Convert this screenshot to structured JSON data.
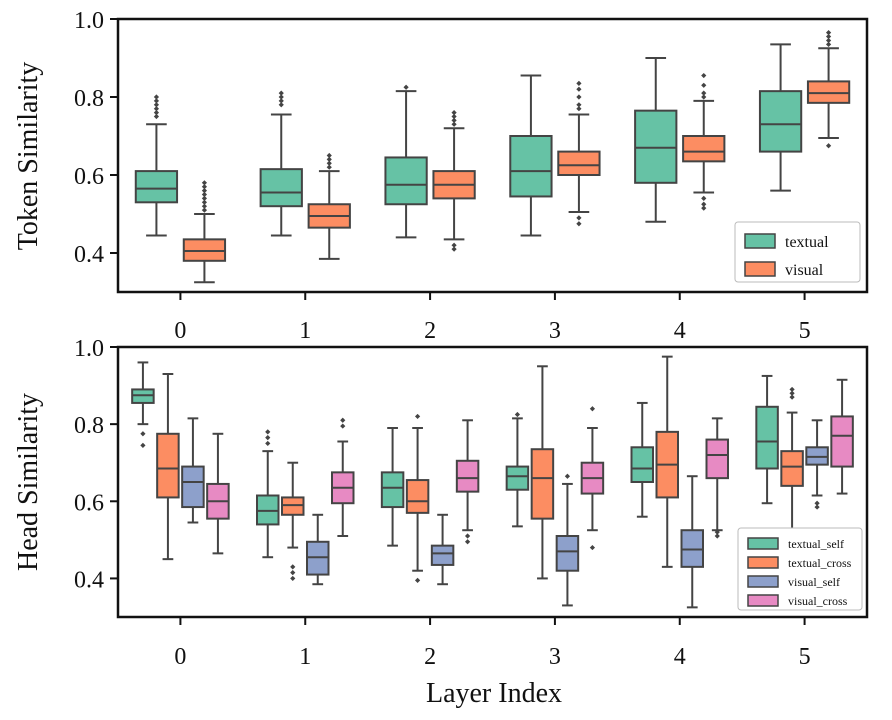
{
  "chart_data": [
    {
      "type": "box",
      "name": "token-similarity",
      "ylabel": "Token Similarity",
      "xlabel": "",
      "ylim": [
        0.3,
        1.0
      ],
      "yticks": [
        0.4,
        0.6,
        0.8,
        1.0
      ],
      "ytick_labels": [
        "0.4",
        "0.6",
        "0.8",
        "1.0"
      ],
      "categories": [
        "0",
        "1",
        "2",
        "3",
        "4",
        "5"
      ],
      "legend_position": "bottom-right",
      "series": [
        {
          "name": "textual",
          "color": "#66c2a5",
          "boxes": [
            {
              "whislo": 0.445,
              "q1": 0.53,
              "med": 0.565,
              "q3": 0.61,
              "whishi": 0.73,
              "fliers": [
                0.75,
                0.76,
                0.77,
                0.78,
                0.79,
                0.8
              ]
            },
            {
              "whislo": 0.445,
              "q1": 0.52,
              "med": 0.555,
              "q3": 0.615,
              "whishi": 0.755,
              "fliers": [
                0.78,
                0.79,
                0.8,
                0.81
              ]
            },
            {
              "whislo": 0.44,
              "q1": 0.525,
              "med": 0.575,
              "q3": 0.645,
              "whishi": 0.815,
              "fliers": [
                0.825
              ]
            },
            {
              "whislo": 0.445,
              "q1": 0.545,
              "med": 0.61,
              "q3": 0.7,
              "whishi": 0.855,
              "fliers": []
            },
            {
              "whislo": 0.48,
              "q1": 0.58,
              "med": 0.67,
              "q3": 0.765,
              "whishi": 0.9,
              "fliers": []
            },
            {
              "whislo": 0.56,
              "q1": 0.66,
              "med": 0.73,
              "q3": 0.815,
              "whishi": 0.935,
              "fliers": []
            }
          ]
        },
        {
          "name": "visual",
          "color": "#fc8d62",
          "boxes": [
            {
              "whislo": 0.325,
              "q1": 0.38,
              "med": 0.405,
              "q3": 0.435,
              "whishi": 0.5,
              "fliers": [
                0.51,
                0.52,
                0.53,
                0.54,
                0.55,
                0.56,
                0.57,
                0.58
              ]
            },
            {
              "whislo": 0.385,
              "q1": 0.465,
              "med": 0.495,
              "q3": 0.525,
              "whishi": 0.61,
              "fliers": [
                0.62,
                0.63,
                0.64,
                0.65
              ]
            },
            {
              "whislo": 0.435,
              "q1": 0.54,
              "med": 0.575,
              "q3": 0.61,
              "whishi": 0.72,
              "fliers": [
                0.73,
                0.74,
                0.75,
                0.76,
                0.42,
                0.41
              ]
            },
            {
              "whislo": 0.505,
              "q1": 0.6,
              "med": 0.625,
              "q3": 0.66,
              "whishi": 0.755,
              "fliers": [
                0.77,
                0.78,
                0.8,
                0.82,
                0.835,
                0.49,
                0.475
              ]
            },
            {
              "whislo": 0.555,
              "q1": 0.635,
              "med": 0.66,
              "q3": 0.7,
              "whishi": 0.79,
              "fliers": [
                0.8,
                0.81,
                0.83,
                0.855,
                0.54,
                0.525,
                0.515
              ]
            },
            {
              "whislo": 0.695,
              "q1": 0.785,
              "med": 0.81,
              "q3": 0.84,
              "whishi": 0.925,
              "fliers": [
                0.935,
                0.945,
                0.955,
                0.965,
                0.675
              ]
            }
          ]
        }
      ]
    },
    {
      "type": "box",
      "name": "head-similarity",
      "ylabel": "Head Similarity",
      "xlabel": "Layer Index",
      "ylim": [
        0.3,
        1.0
      ],
      "yticks": [
        0.4,
        0.6,
        0.8,
        1.0
      ],
      "ytick_labels": [
        "0.4",
        "0.6",
        "0.8",
        "1.0"
      ],
      "categories": [
        "0",
        "1",
        "2",
        "3",
        "4",
        "5"
      ],
      "legend_position": "bottom-right",
      "series": [
        {
          "name": "textual_self",
          "color": "#66c2a5",
          "boxes": [
            {
              "whislo": 0.8,
              "q1": 0.855,
              "med": 0.875,
              "q3": 0.89,
              "whishi": 0.96,
              "fliers": [
                0.775,
                0.745
              ]
            },
            {
              "whislo": 0.455,
              "q1": 0.54,
              "med": 0.575,
              "q3": 0.615,
              "whishi": 0.73,
              "fliers": [
                0.75,
                0.765,
                0.78
              ]
            },
            {
              "whislo": 0.485,
              "q1": 0.585,
              "med": 0.635,
              "q3": 0.675,
              "whishi": 0.79,
              "fliers": []
            },
            {
              "whislo": 0.535,
              "q1": 0.63,
              "med": 0.665,
              "q3": 0.69,
              "whishi": 0.815,
              "fliers": [
                0.825
              ]
            },
            {
              "whislo": 0.56,
              "q1": 0.65,
              "med": 0.685,
              "q3": 0.74,
              "whishi": 0.855,
              "fliers": []
            },
            {
              "whislo": 0.595,
              "q1": 0.685,
              "med": 0.755,
              "q3": 0.845,
              "whishi": 0.925,
              "fliers": []
            }
          ]
        },
        {
          "name": "textual_cross",
          "color": "#fc8d62",
          "boxes": [
            {
              "whislo": 0.45,
              "q1": 0.61,
              "med": 0.685,
              "q3": 0.775,
              "whishi": 0.93,
              "fliers": []
            },
            {
              "whislo": 0.48,
              "q1": 0.565,
              "med": 0.59,
              "q3": 0.61,
              "whishi": 0.7,
              "fliers": [
                0.43,
                0.415,
                0.4
              ]
            },
            {
              "whislo": 0.42,
              "q1": 0.57,
              "med": 0.6,
              "q3": 0.655,
              "whishi": 0.79,
              "fliers": [
                0.82,
                0.395
              ]
            },
            {
              "whislo": 0.4,
              "q1": 0.555,
              "med": 0.66,
              "q3": 0.735,
              "whishi": 0.95,
              "fliers": []
            },
            {
              "whislo": 0.43,
              "q1": 0.61,
              "med": 0.695,
              "q3": 0.78,
              "whishi": 0.975,
              "fliers": []
            },
            {
              "whislo": 0.51,
              "q1": 0.64,
              "med": 0.69,
              "q3": 0.73,
              "whishi": 0.83,
              "fliers": [
                0.87,
                0.88,
                0.89,
                0.5
              ]
            }
          ]
        },
        {
          "name": "visual_self",
          "color": "#8da0cb",
          "boxes": [
            {
              "whislo": 0.545,
              "q1": 0.585,
              "med": 0.65,
              "q3": 0.69,
              "whishi": 0.815,
              "fliers": []
            },
            {
              "whislo": 0.385,
              "q1": 0.41,
              "med": 0.455,
              "q3": 0.495,
              "whishi": 0.565,
              "fliers": []
            },
            {
              "whislo": 0.385,
              "q1": 0.435,
              "med": 0.465,
              "q3": 0.485,
              "whishi": 0.565,
              "fliers": []
            },
            {
              "whislo": 0.33,
              "q1": 0.42,
              "med": 0.47,
              "q3": 0.51,
              "whishi": 0.645,
              "fliers": [
                0.665
              ]
            },
            {
              "whislo": 0.325,
              "q1": 0.43,
              "med": 0.475,
              "q3": 0.525,
              "whishi": 0.665,
              "fliers": []
            },
            {
              "whislo": 0.615,
              "q1": 0.695,
              "med": 0.715,
              "q3": 0.74,
              "whishi": 0.81,
              "fliers": [
                0.595,
                0.585
              ]
            }
          ]
        },
        {
          "name": "visual_cross",
          "color": "#e78ac3",
          "boxes": [
            {
              "whislo": 0.465,
              "q1": 0.555,
              "med": 0.6,
              "q3": 0.645,
              "whishi": 0.775,
              "fliers": []
            },
            {
              "whislo": 0.51,
              "q1": 0.595,
              "med": 0.635,
              "q3": 0.675,
              "whishi": 0.755,
              "fliers": [
                0.795,
                0.81
              ]
            },
            {
              "whislo": 0.525,
              "q1": 0.625,
              "med": 0.66,
              "q3": 0.705,
              "whishi": 0.81,
              "fliers": [
                0.51,
                0.495
              ]
            },
            {
              "whislo": 0.525,
              "q1": 0.62,
              "med": 0.66,
              "q3": 0.7,
              "whishi": 0.79,
              "fliers": [
                0.84,
                0.48
              ]
            },
            {
              "whislo": 0.525,
              "q1": 0.66,
              "med": 0.72,
              "q3": 0.76,
              "whishi": 0.815,
              "fliers": [
                0.52,
                0.51
              ]
            },
            {
              "whislo": 0.62,
              "q1": 0.69,
              "med": 0.77,
              "q3": 0.82,
              "whishi": 0.915,
              "fliers": []
            }
          ]
        }
      ]
    }
  ]
}
